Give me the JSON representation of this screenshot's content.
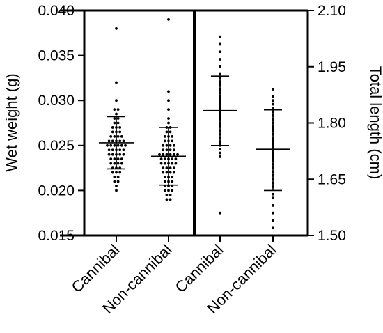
{
  "chart_data": [
    {
      "type": "scatter",
      "subtype": "dot-plot with mean and SD",
      "ylabel": "Wet weight (g)",
      "y_axis_side": "left",
      "ylim": [
        0.015,
        0.04
      ],
      "yticks": [
        "0.015",
        "0.020",
        "0.025",
        "0.030",
        "0.035",
        "0.040"
      ],
      "categories": [
        "Cannibal",
        "Non-cannibal"
      ],
      "summary": [
        {
          "category": "Cannibal",
          "mean": 0.0253,
          "sd_low": 0.0224,
          "sd_high": 0.0282
        },
        {
          "category": "Non-cannibal",
          "mean": 0.0238,
          "sd_low": 0.0206,
          "sd_high": 0.027
        }
      ],
      "points": [
        {
          "category": "Cannibal",
          "values": [
            0.02,
            0.0205,
            0.021,
            0.021,
            0.0215,
            0.0215,
            0.022,
            0.022,
            0.022,
            0.0225,
            0.0225,
            0.0225,
            0.023,
            0.023,
            0.023,
            0.023,
            0.0235,
            0.0235,
            0.0235,
            0.0235,
            0.024,
            0.024,
            0.024,
            0.024,
            0.024,
            0.0245,
            0.0245,
            0.0245,
            0.0245,
            0.0245,
            0.025,
            0.025,
            0.025,
            0.025,
            0.025,
            0.025,
            0.0255,
            0.0255,
            0.0255,
            0.0255,
            0.0255,
            0.026,
            0.026,
            0.026,
            0.026,
            0.0265,
            0.0265,
            0.0265,
            0.027,
            0.027,
            0.027,
            0.0275,
            0.0275,
            0.028,
            0.028,
            0.0285,
            0.029,
            0.029,
            0.03,
            0.032,
            0.038
          ]
        },
        {
          "category": "Non-cannibal",
          "values": [
            0.019,
            0.019,
            0.0195,
            0.0195,
            0.02,
            0.02,
            0.02,
            0.0205,
            0.0205,
            0.0205,
            0.021,
            0.021,
            0.021,
            0.0215,
            0.0215,
            0.0215,
            0.022,
            0.022,
            0.022,
            0.022,
            0.0225,
            0.0225,
            0.0225,
            0.0225,
            0.023,
            0.023,
            0.023,
            0.023,
            0.023,
            0.0235,
            0.0235,
            0.0235,
            0.0235,
            0.0235,
            0.024,
            0.024,
            0.024,
            0.024,
            0.024,
            0.024,
            0.0245,
            0.0245,
            0.0245,
            0.0245,
            0.025,
            0.025,
            0.025,
            0.025,
            0.0255,
            0.0255,
            0.0255,
            0.026,
            0.026,
            0.026,
            0.0265,
            0.0265,
            0.027,
            0.027,
            0.0275,
            0.028,
            0.029,
            0.03,
            0.031,
            0.039
          ]
        }
      ]
    },
    {
      "type": "scatter",
      "subtype": "dot-plot with mean and SD",
      "ylabel": "Total length (cm)",
      "y_axis_side": "right",
      "ylim": [
        1.5,
        2.1
      ],
      "yticks": [
        "1.50",
        "1.65",
        "1.80",
        "1.95",
        "2.10"
      ],
      "categories": [
        "Cannibal",
        "Non-cannibal"
      ],
      "summary": [
        {
          "category": "Cannibal",
          "mean": 1.833,
          "sd_low": 1.74,
          "sd_high": 1.925
        },
        {
          "category": "Non-cannibal",
          "mean": 1.73,
          "sd_low": 1.62,
          "sd_high": 1.835
        }
      ],
      "points": [
        {
          "category": "Cannibal",
          "values": [
            1.56,
            1.71,
            1.72,
            1.73,
            1.74,
            1.745,
            1.75,
            1.76,
            1.77,
            1.78,
            1.79,
            1.795,
            1.8,
            1.81,
            1.815,
            1.82,
            1.825,
            1.83,
            1.835,
            1.84,
            1.845,
            1.85,
            1.855,
            1.86,
            1.865,
            1.87,
            1.88,
            1.885,
            1.89,
            1.9,
            1.905,
            1.91,
            1.92,
            1.93,
            1.95,
            1.97,
            1.99,
            2.01,
            2.03
          ]
        },
        {
          "category": "Non-cannibal",
          "values": [
            1.52,
            1.54,
            1.56,
            1.58,
            1.6,
            1.61,
            1.63,
            1.64,
            1.65,
            1.66,
            1.67,
            1.68,
            1.69,
            1.7,
            1.705,
            1.71,
            1.715,
            1.72,
            1.725,
            1.73,
            1.735,
            1.74,
            1.745,
            1.75,
            1.755,
            1.76,
            1.77,
            1.78,
            1.785,
            1.79,
            1.8,
            1.81,
            1.82,
            1.83,
            1.84,
            1.85,
            1.86,
            1.87,
            1.89
          ]
        }
      ]
    }
  ]
}
